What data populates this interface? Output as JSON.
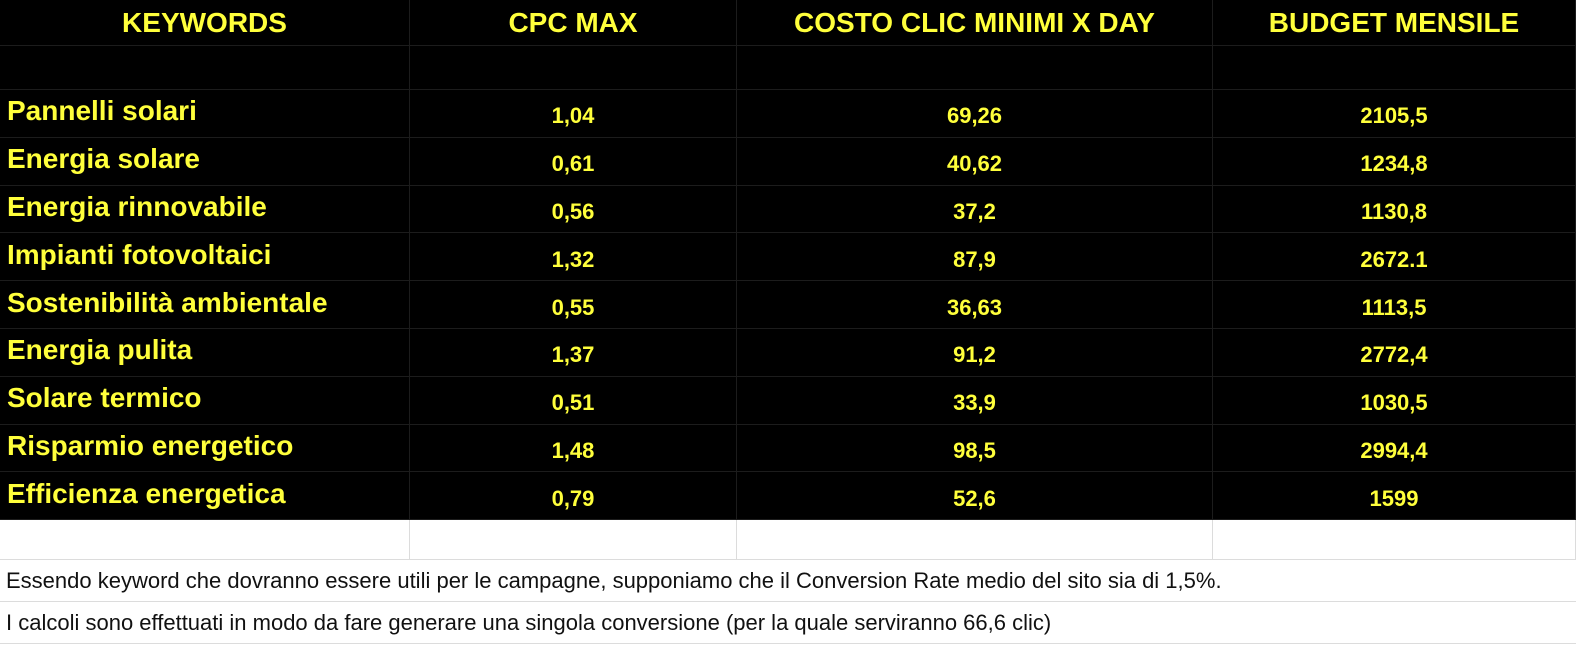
{
  "table": {
    "headers": [
      "KEYWORDS",
      "CPC MAX",
      "COSTO CLIC MINIMI X DAY",
      "BUDGET MENSILE"
    ],
    "rows": [
      [
        "Pannelli solari",
        "1,04",
        "69,26",
        "2105,5"
      ],
      [
        "Energia solare",
        "0,61",
        "40,62",
        "1234,8"
      ],
      [
        "Energia rinnovabile",
        "0,56",
        "37,2",
        "1130,8"
      ],
      [
        "Impianti fotovoltaici",
        "1,32",
        "87,9",
        "2672.1"
      ],
      [
        "Sostenibilità ambientale",
        "0,55",
        "36,63",
        "1113,5"
      ],
      [
        "Energia pulita",
        "1,37",
        "91,2",
        "2772,4"
      ],
      [
        "Solare termico",
        "0,51",
        "33,9",
        "1030,5"
      ],
      [
        "Risparmio energetico",
        "1,48",
        "98,5",
        "2994,4"
      ],
      [
        "Efficienza energetica",
        "0,79",
        "52,6",
        "1599"
      ]
    ]
  },
  "notes": [
    "Essendo keyword che dovranno essere utili per le campagne, supponiamo che il Conversion Rate medio del sito sia di 1,5%.",
    "I calcoli sono effettuati in modo da fare generare una singola conversione (per la quale serviranno 66,6 clic)"
  ]
}
